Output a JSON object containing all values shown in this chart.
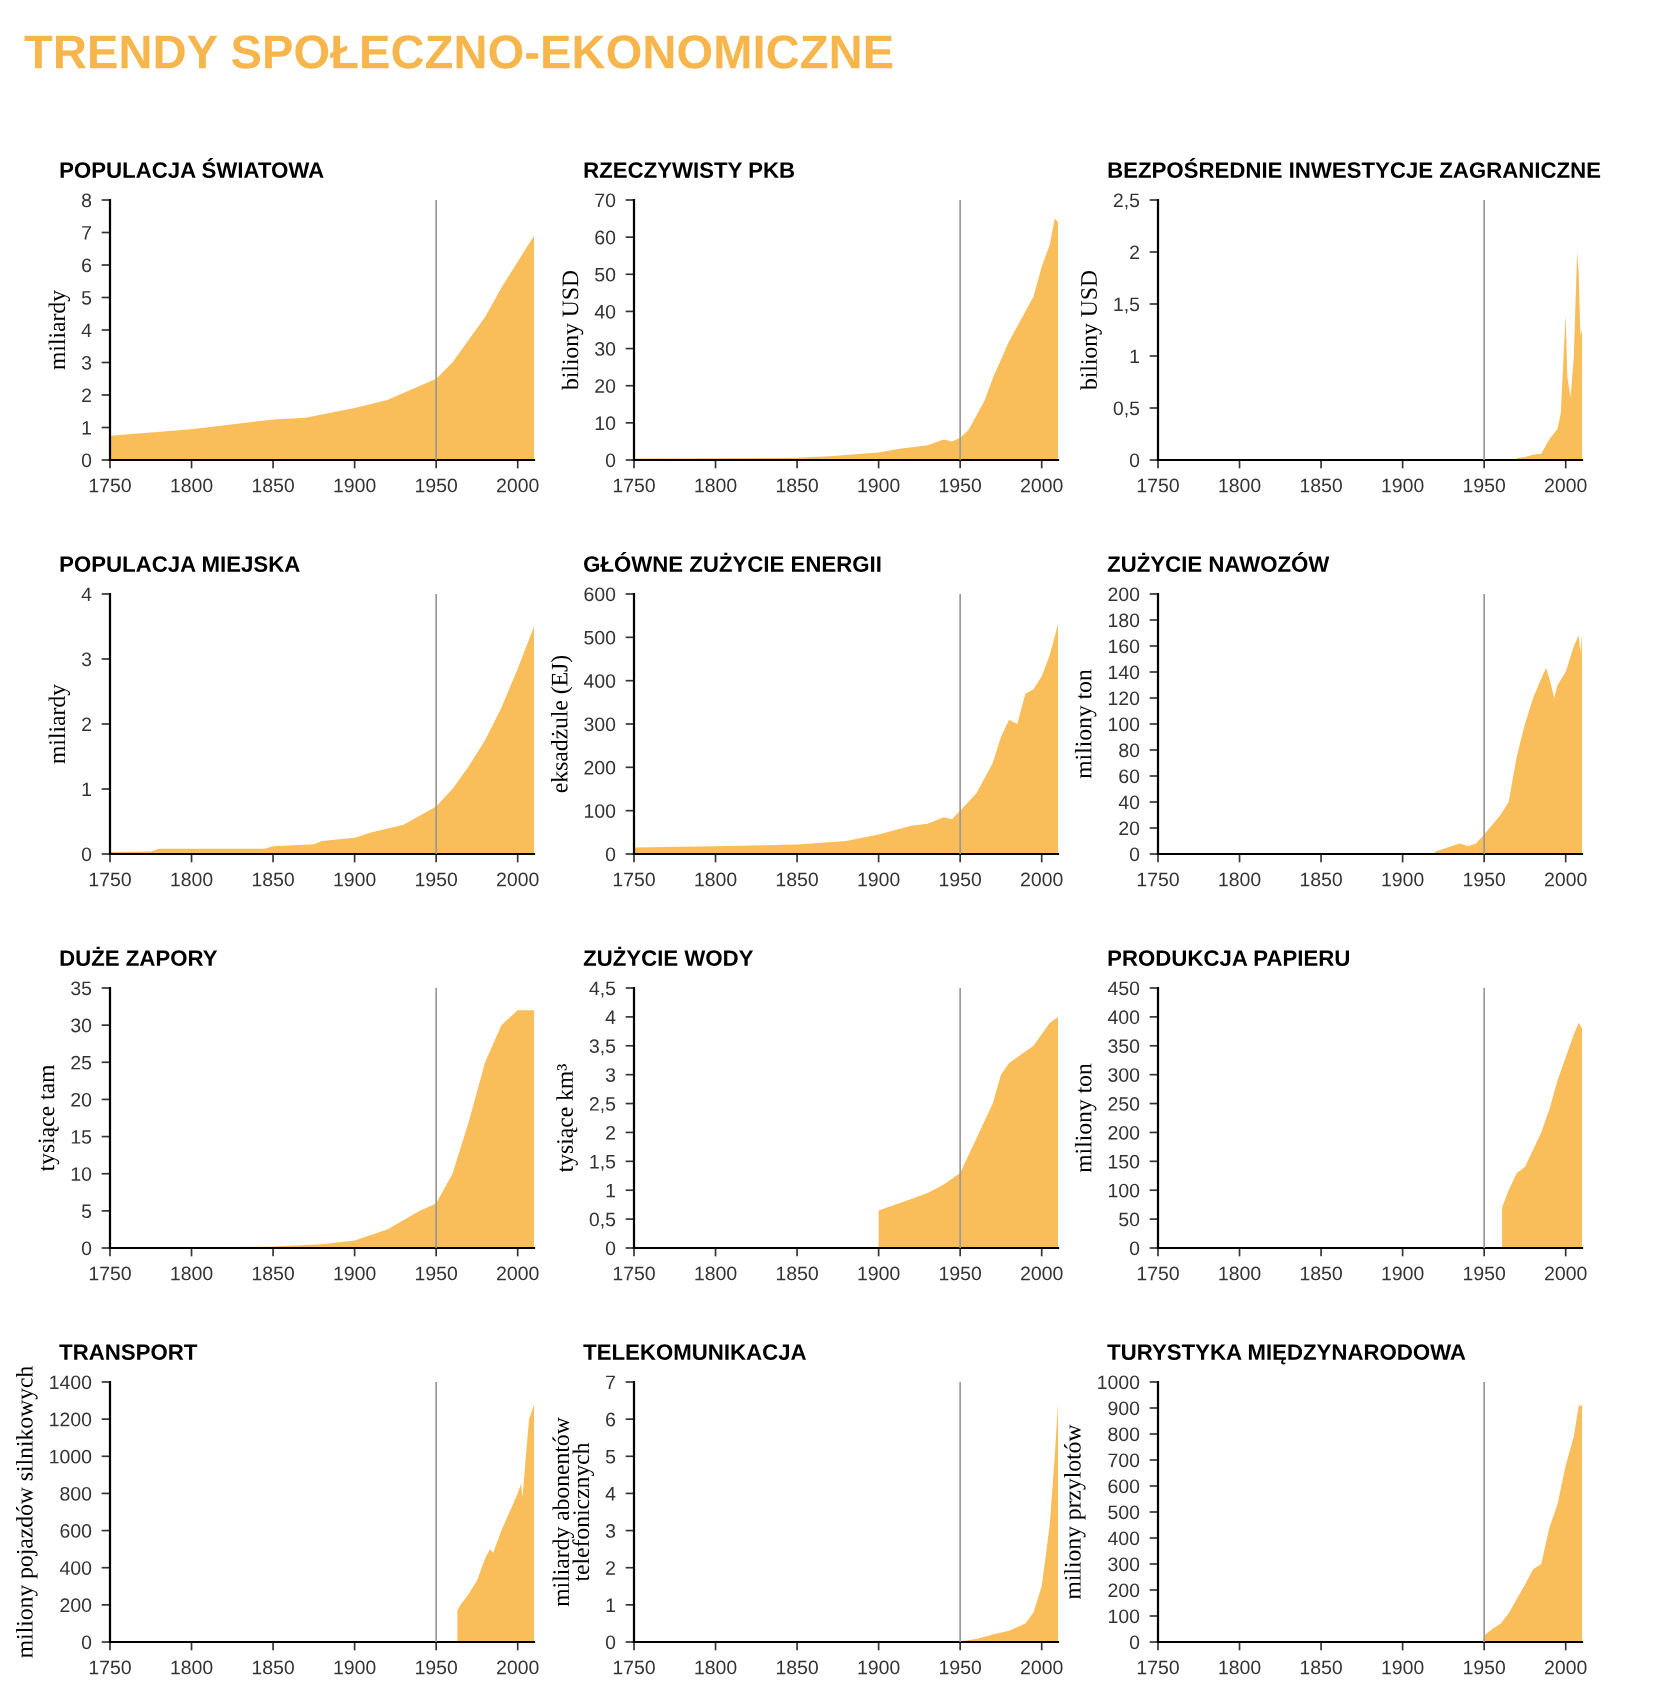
{
  "chart_data": [
    {
      "type": "area",
      "title": "POPULACJA ŚWIATOWA",
      "ylabel": "miliardy",
      "annotations": [
        "TRENDY SPOŁECZNO-EKONOMICZNE"
      ],
      "series": [
        {
          "color": "#f9bd5a",
          "x": [
            1750,
            1800,
            1850,
            1870,
            1900,
            1920,
            1950,
            1960,
            1970,
            1980,
            1990,
            2000,
            2010
          ],
          "values": [
            0.75,
            0.95,
            1.25,
            1.3,
            1.6,
            1.85,
            2.5,
            3.0,
            3.7,
            4.4,
            5.3,
            6.1,
            6.9
          ]
        }
      ],
      "xlim": [
        1750,
        2010
      ],
      "xticks": [
        1750,
        1800,
        1850,
        1900,
        1950,
        2000
      ],
      "ylim": [
        0,
        8
      ],
      "yticks": [
        0,
        1,
        2,
        3,
        4,
        5,
        6,
        7,
        8
      ],
      "ref_lines": [
        {
          "axis": "x",
          "value": 1950,
          "color": "#999999"
        }
      ]
    },
    {
      "type": "area",
      "title": "RZECZYWISTY PKB",
      "ylabel": "biliony USD",
      "series": [
        {
          "color": "#f9bd5a",
          "x": [
            1750,
            1800,
            1850,
            1870,
            1900,
            1913,
            1930,
            1940,
            1945,
            1950,
            1955,
            1960,
            1965,
            1970,
            1975,
            1980,
            1985,
            1990,
            1995,
            2000,
            2005,
            2008,
            2010
          ],
          "values": [
            0.4,
            0.5,
            0.6,
            1,
            2,
            3,
            4,
            5.5,
            5,
            6,
            8,
            12,
            16,
            22,
            27,
            32,
            36,
            40,
            44,
            52,
            58,
            65,
            64
          ]
        }
      ],
      "xlim": [
        1750,
        2010
      ],
      "xticks": [
        1750,
        1800,
        1850,
        1900,
        1950,
        2000
      ],
      "ylim": [
        0,
        70
      ],
      "yticks": [
        0,
        10,
        20,
        30,
        40,
        50,
        60,
        70
      ],
      "ref_lines": [
        {
          "axis": "x",
          "value": 1950,
          "color": "#999999"
        }
      ]
    },
    {
      "type": "area",
      "title": "BEZPOŚREDNIE INWESTYCJE ZAGRANICZNE",
      "ylabel": "biliony USD",
      "series": [
        {
          "color": "#f9bd5a",
          "x": [
            1970,
            1975,
            1980,
            1985,
            1990,
            1995,
            1997,
            1999,
            2000,
            2001,
            2003,
            2005,
            2007,
            2008,
            2009,
            2010
          ],
          "values": [
            0.02,
            0.03,
            0.05,
            0.06,
            0.2,
            0.3,
            0.45,
            1.1,
            1.4,
            0.8,
            0.6,
            1.0,
            2.0,
            1.8,
            1.2,
            1.25
          ]
        }
      ],
      "xlim": [
        1750,
        2010
      ],
      "xticks": [
        1750,
        1800,
        1850,
        1900,
        1950,
        2000
      ],
      "ylim": [
        0,
        2.5
      ],
      "yticks": [
        0,
        {
          "value": 0.5,
          "label": "0,5"
        },
        1,
        {
          "value": 1.5,
          "label": "1,5"
        },
        2,
        {
          "value": 2.5,
          "label": "2,5"
        }
      ],
      "ref_lines": [
        {
          "axis": "x",
          "value": 1950,
          "color": "#999999"
        }
      ]
    },
    {
      "type": "area",
      "title": "POPULACJA MIEJSKA",
      "ylabel": "miliardy",
      "series": [
        {
          "color": "#f9bd5a",
          "x": [
            1750,
            1775,
            1780,
            1800,
            1845,
            1850,
            1875,
            1880,
            1900,
            1910,
            1930,
            1950,
            1960,
            1970,
            1980,
            1990,
            2000,
            2010
          ],
          "values": [
            0.03,
            0.04,
            0.08,
            0.08,
            0.08,
            0.12,
            0.15,
            0.2,
            0.25,
            0.33,
            0.45,
            0.73,
            1.0,
            1.35,
            1.75,
            2.25,
            2.85,
            3.5
          ]
        }
      ],
      "xlim": [
        1750,
        2010
      ],
      "xticks": [
        1750,
        1800,
        1850,
        1900,
        1950,
        2000
      ],
      "ylim": [
        0,
        4
      ],
      "yticks": [
        0,
        1,
        2,
        3,
        4
      ],
      "ref_lines": [
        {
          "axis": "x",
          "value": 1950,
          "color": "#999999"
        }
      ]
    },
    {
      "type": "area",
      "title": "GŁÓWNE ZUŻYCIE ENERGII",
      "ylabel": "eksadżule (EJ)",
      "series": [
        {
          "color": "#f9bd5a",
          "x": [
            1750,
            1800,
            1850,
            1880,
            1900,
            1920,
            1930,
            1940,
            1945,
            1950,
            1960,
            1970,
            1975,
            1980,
            1985,
            1990,
            1995,
            2000,
            2005,
            2010
          ],
          "values": [
            15,
            18,
            22,
            30,
            45,
            65,
            70,
            85,
            80,
            100,
            140,
            210,
            270,
            310,
            300,
            370,
            380,
            410,
            460,
            530
          ]
        }
      ],
      "xlim": [
        1750,
        2010
      ],
      "xticks": [
        1750,
        1800,
        1850,
        1900,
        1950,
        2000
      ],
      "ylim": [
        0,
        600
      ],
      "yticks": [
        0,
        100,
        200,
        300,
        400,
        500,
        600
      ],
      "ref_lines": [
        {
          "axis": "x",
          "value": 1950,
          "color": "#999999"
        }
      ]
    },
    {
      "type": "area",
      "title": "ZUŻYCIE NAWOZÓW",
      "ylabel": "miliony ton",
      "series": [
        {
          "color": "#f9bd5a",
          "x": [
            1920,
            1935,
            1940,
            1945,
            1950,
            1960,
            1965,
            1970,
            1975,
            1980,
            1985,
            1988,
            1990,
            1993,
            1995,
            2000,
            2005,
            2008,
            2009,
            2010
          ],
          "values": [
            2,
            8,
            6,
            8,
            15,
            30,
            40,
            75,
            100,
            120,
            135,
            143,
            135,
            120,
            130,
            140,
            160,
            168,
            155,
            168
          ]
        }
      ],
      "xlim": [
        1750,
        2010
      ],
      "xticks": [
        1750,
        1800,
        1850,
        1900,
        1950,
        2000
      ],
      "ylim": [
        0,
        200
      ],
      "yticks": [
        0,
        20,
        40,
        60,
        80,
        100,
        120,
        140,
        160,
        180,
        200
      ],
      "ref_lines": [
        {
          "axis": "x",
          "value": 1950,
          "color": "#999999"
        }
      ]
    },
    {
      "type": "area",
      "title": "DUŻE ZAPORY",
      "ylabel": "tysiące tam",
      "series": [
        {
          "color": "#f9bd5a",
          "x": [
            1800,
            1850,
            1880,
            1900,
            1920,
            1940,
            1950,
            1960,
            1970,
            1980,
            1990,
            2000,
            2010
          ],
          "values": [
            0.1,
            0.2,
            0.5,
            1,
            2.5,
            5,
            6,
            10,
            17,
            25,
            30,
            32,
            32
          ]
        }
      ],
      "xlim": [
        1750,
        2010
      ],
      "xticks": [
        1750,
        1800,
        1850,
        1900,
        1950,
        2000
      ],
      "ylim": [
        0,
        35
      ],
      "yticks": [
        0,
        5,
        10,
        15,
        20,
        25,
        30,
        35
      ],
      "ref_lines": [
        {
          "axis": "x",
          "value": 1950,
          "color": "#999999"
        }
      ]
    },
    {
      "type": "area",
      "title": "ZUŻYCIE WODY",
      "ylabel": "tysiące km³",
      "series": [
        {
          "color": "#f9bd5a",
          "x": [
            1900,
            1910,
            1920,
            1930,
            1940,
            1950,
            1960,
            1970,
            1975,
            1980,
            1985,
            1990,
            1995,
            2000,
            2005,
            2010
          ],
          "values": [
            0.65,
            0.75,
            0.85,
            0.95,
            1.1,
            1.3,
            1.9,
            2.5,
            3.0,
            3.2,
            3.3,
            3.4,
            3.5,
            3.7,
            3.9,
            4.0
          ]
        }
      ],
      "xlim": [
        1750,
        2010
      ],
      "xticks": [
        1750,
        1800,
        1850,
        1900,
        1950,
        2000
      ],
      "ylim": [
        0,
        4.5
      ],
      "yticks": [
        0,
        {
          "value": 0.5,
          "label": "0,5"
        },
        1,
        {
          "value": 1.5,
          "label": "1,5"
        },
        2,
        {
          "value": 2.5,
          "label": "2,5"
        },
        3,
        {
          "value": 3.5,
          "label": "3,5"
        },
        4,
        {
          "value": 4.5,
          "label": "4,5"
        }
      ],
      "ref_lines": [
        {
          "axis": "x",
          "value": 1950,
          "color": "#999999"
        }
      ]
    },
    {
      "type": "area",
      "title": "PRODUKCJA PAPIERU",
      "ylabel": "miliony ton",
      "series": [
        {
          "color": "#f9bd5a",
          "x": [
            1961,
            1965,
            1970,
            1975,
            1980,
            1985,
            1990,
            1995,
            2000,
            2005,
            2008,
            2010
          ],
          "values": [
            70,
            100,
            130,
            140,
            170,
            200,
            240,
            290,
            330,
            370,
            390,
            380
          ]
        }
      ],
      "xlim": [
        1750,
        2010
      ],
      "xticks": [
        1750,
        1800,
        1850,
        1900,
        1950,
        2000
      ],
      "ylim": [
        0,
        450
      ],
      "yticks": [
        0,
        50,
        100,
        150,
        200,
        250,
        300,
        350,
        400,
        450
      ],
      "ref_lines": [
        {
          "axis": "x",
          "value": 1950,
          "color": "#999999"
        }
      ]
    },
    {
      "type": "area",
      "title": "TRANSPORT",
      "ylabel": "miliony pojazdów silnikowych",
      "series": [
        {
          "color": "#f9bd5a",
          "x": [
            1963,
            1965,
            1970,
            1975,
            1980,
            1983,
            1985,
            1990,
            1995,
            2000,
            2002,
            2003,
            2005,
            2007,
            2010
          ],
          "values": [
            170,
            200,
            260,
            330,
            450,
            500,
            480,
            600,
            700,
            800,
            850,
            780,
            1000,
            1200,
            1280
          ]
        }
      ],
      "xlim": [
        1750,
        2010
      ],
      "xticks": [
        1750,
        1800,
        1850,
        1900,
        1950,
        2000
      ],
      "ylim": [
        0,
        1400
      ],
      "yticks": [
        0,
        200,
        400,
        600,
        800,
        1000,
        1200,
        1400
      ],
      "ref_lines": [
        {
          "axis": "x",
          "value": 1950,
          "color": "#999999"
        }
      ]
    },
    {
      "type": "area",
      "title": "TELEKOMUNIKACJA",
      "ylabel": "miliardy abonentów\ntelefonicznych",
      "series": [
        {
          "color": "#f9bd5a",
          "x": [
            1950,
            1960,
            1970,
            1980,
            1990,
            1995,
            2000,
            2003,
            2005,
            2008,
            2010
          ],
          "values": [
            0.02,
            0.08,
            0.2,
            0.3,
            0.5,
            0.8,
            1.5,
            2.5,
            3.2,
            5,
            6.4
          ]
        }
      ],
      "xlim": [
        1750,
        2010
      ],
      "xticks": [
        1750,
        1800,
        1850,
        1900,
        1950,
        2000
      ],
      "ylim": [
        0,
        7
      ],
      "yticks": [
        0,
        1,
        2,
        3,
        4,
        5,
        6,
        7
      ],
      "ref_lines": [
        {
          "axis": "x",
          "value": 1950,
          "color": "#999999"
        }
      ]
    },
    {
      "type": "area",
      "title": "TURYSTYKA MIĘDZYNARODOWA",
      "ylabel": "miliony przylotów",
      "series": [
        {
          "color": "#f9bd5a",
          "x": [
            1950,
            1955,
            1960,
            1965,
            1970,
            1975,
            1980,
            1985,
            1990,
            1995,
            2000,
            2005,
            2008,
            2010
          ],
          "values": [
            25,
            50,
            70,
            110,
            165,
            220,
            280,
            300,
            440,
            530,
            680,
            790,
            910,
            910
          ]
        }
      ],
      "xlim": [
        1750,
        2010
      ],
      "xticks": [
        1750,
        1800,
        1850,
        1900,
        1950,
        2000
      ],
      "ylim": [
        0,
        1000
      ],
      "yticks": [
        0,
        100,
        200,
        300,
        400,
        500,
        600,
        700,
        800,
        900,
        1000
      ],
      "ref_lines": [
        {
          "axis": "x",
          "value": 1950,
          "color": "#999999"
        }
      ]
    }
  ]
}
